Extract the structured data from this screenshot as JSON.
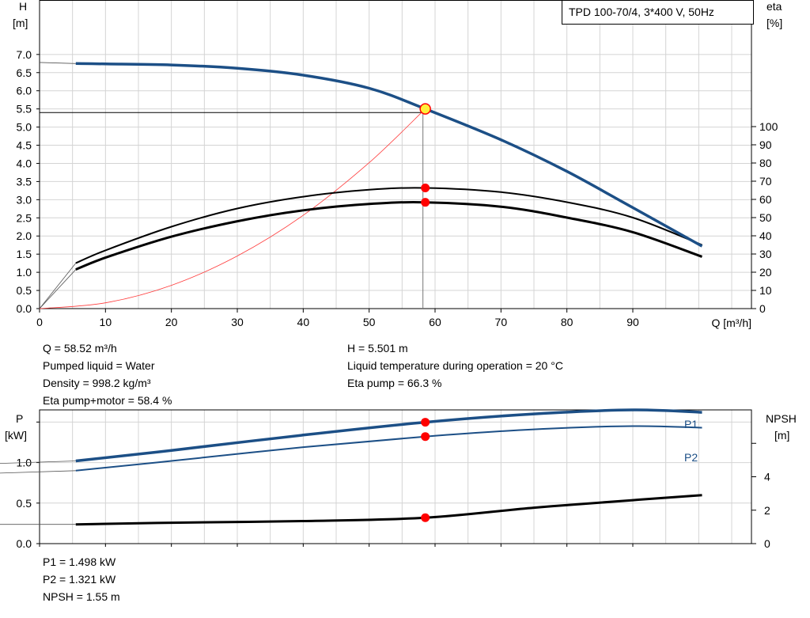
{
  "chart_data": [
    {
      "type": "line",
      "title": "TPD 100-70/4, 3*400 V, 50Hz",
      "xlabel": "Q [m³/h]",
      "ylabel_left": [
        "H",
        "[m]"
      ],
      "ylabel_right": [
        "eta",
        "[%]"
      ],
      "xlim": [
        0,
        108
      ],
      "ylim": [
        0,
        8.5
      ],
      "ylim_right": [
        0,
        100
      ],
      "x_ticks": [
        0,
        10,
        20,
        30,
        40,
        50,
        60,
        70,
        80,
        90
      ],
      "y_ticks": [
        "0.0",
        "0.5",
        "1.0",
        "1.5",
        "2.0",
        "2.5",
        "3.0",
        "3.5",
        "4.0",
        "4.5",
        "5.0",
        "5.5",
        "6.0",
        "6.5",
        "7.0"
      ],
      "y_ticks_right": [
        "0",
        "10",
        "20",
        "30",
        "40",
        "50",
        "60",
        "70",
        "80",
        "90",
        "100"
      ],
      "grid": true,
      "series": [
        {
          "key": "H",
          "color": "#1c4f86",
          "x": [
            5.5,
            10,
            20,
            30,
            40,
            50,
            58.52,
            70,
            80,
            90,
            100.5
          ],
          "y": [
            6.75,
            6.74,
            6.71,
            6.62,
            6.43,
            6.07,
            5.501,
            4.65,
            3.78,
            2.78,
            1.72
          ]
        },
        {
          "key": "eta_pump",
          "color": "#000000",
          "x": [
            5.5,
            10,
            20,
            30,
            40,
            50,
            58.52,
            70,
            80,
            90,
            100.5
          ],
          "y_pct": [
            25,
            32,
            45,
            55,
            61.5,
            65.3,
            66.3,
            64,
            58.5,
            50,
            35
          ]
        },
        {
          "key": "eta_total",
          "color": "#000000",
          "x": [
            5.5,
            10,
            20,
            30,
            40,
            50,
            58.52,
            70,
            80,
            90,
            100.5
          ],
          "y_pct": [
            21.5,
            28,
            39.5,
            48,
            54,
            57.5,
            58.4,
            56,
            50,
            42,
            28.5
          ]
        },
        {
          "key": "system_curve",
          "color": "#ff3b3b",
          "x": [
            0,
            10,
            20,
            30,
            40,
            50,
            58.52
          ],
          "y": [
            0,
            0.16,
            0.64,
            1.45,
            2.57,
            4.02,
            5.501
          ]
        }
      ],
      "operating_point": {
        "x": 58.52,
        "y": 5.501
      }
    },
    {
      "type": "line",
      "ylabel_left": [
        "P",
        "[kW]"
      ],
      "ylabel_right": [
        "NPSH",
        "[m]"
      ],
      "xlim": [
        0,
        108
      ],
      "ylim": [
        0,
        1.65
      ],
      "ylim_right": [
        0,
        8
      ],
      "y_ticks": [
        "0.0",
        "0.5",
        "1.0"
      ],
      "y_ticks_right": [
        "0",
        "2",
        "4"
      ],
      "grid": true,
      "series": [
        {
          "name": "P1",
          "color": "#1c4f86",
          "x": [
            5.5,
            20,
            40,
            58.52,
            75,
            90,
            100.5
          ],
          "y": [
            1.02,
            1.15,
            1.34,
            1.498,
            1.6,
            1.65,
            1.62
          ]
        },
        {
          "name": "P2",
          "color": "#1c4f86",
          "x": [
            5.5,
            20,
            40,
            58.52,
            75,
            90,
            100.5
          ],
          "y": [
            0.9,
            1.02,
            1.19,
            1.321,
            1.41,
            1.45,
            1.43
          ]
        },
        {
          "key": "NPSH",
          "color": "#000000",
          "x": [
            5.5,
            20,
            40,
            58.52,
            75,
            90,
            100.5
          ],
          "y_right": [
            1.15,
            1.25,
            1.35,
            1.55,
            2.15,
            2.6,
            2.9
          ]
        }
      ]
    }
  ],
  "info_top_left": [
    "Q = 58.52 m³/h",
    "Pumped liquid = Water",
    "Density = 998.2 kg/m³",
    "Eta pump+motor = 58.4 %"
  ],
  "info_top_right": [
    "H = 5.501 m",
    "Liquid temperature during operation = 20 °C",
    "Eta pump = 66.3 %"
  ],
  "info_bottom": [
    "P1 = 1.498 kW",
    "P2 = 1.321 kW",
    "NPSH = 1.55 m"
  ],
  "colors": {
    "blue": "#1c4f86",
    "grid": "#d4d4d4",
    "red": "#ff0000",
    "marker_yellow": "#ffef3a"
  }
}
